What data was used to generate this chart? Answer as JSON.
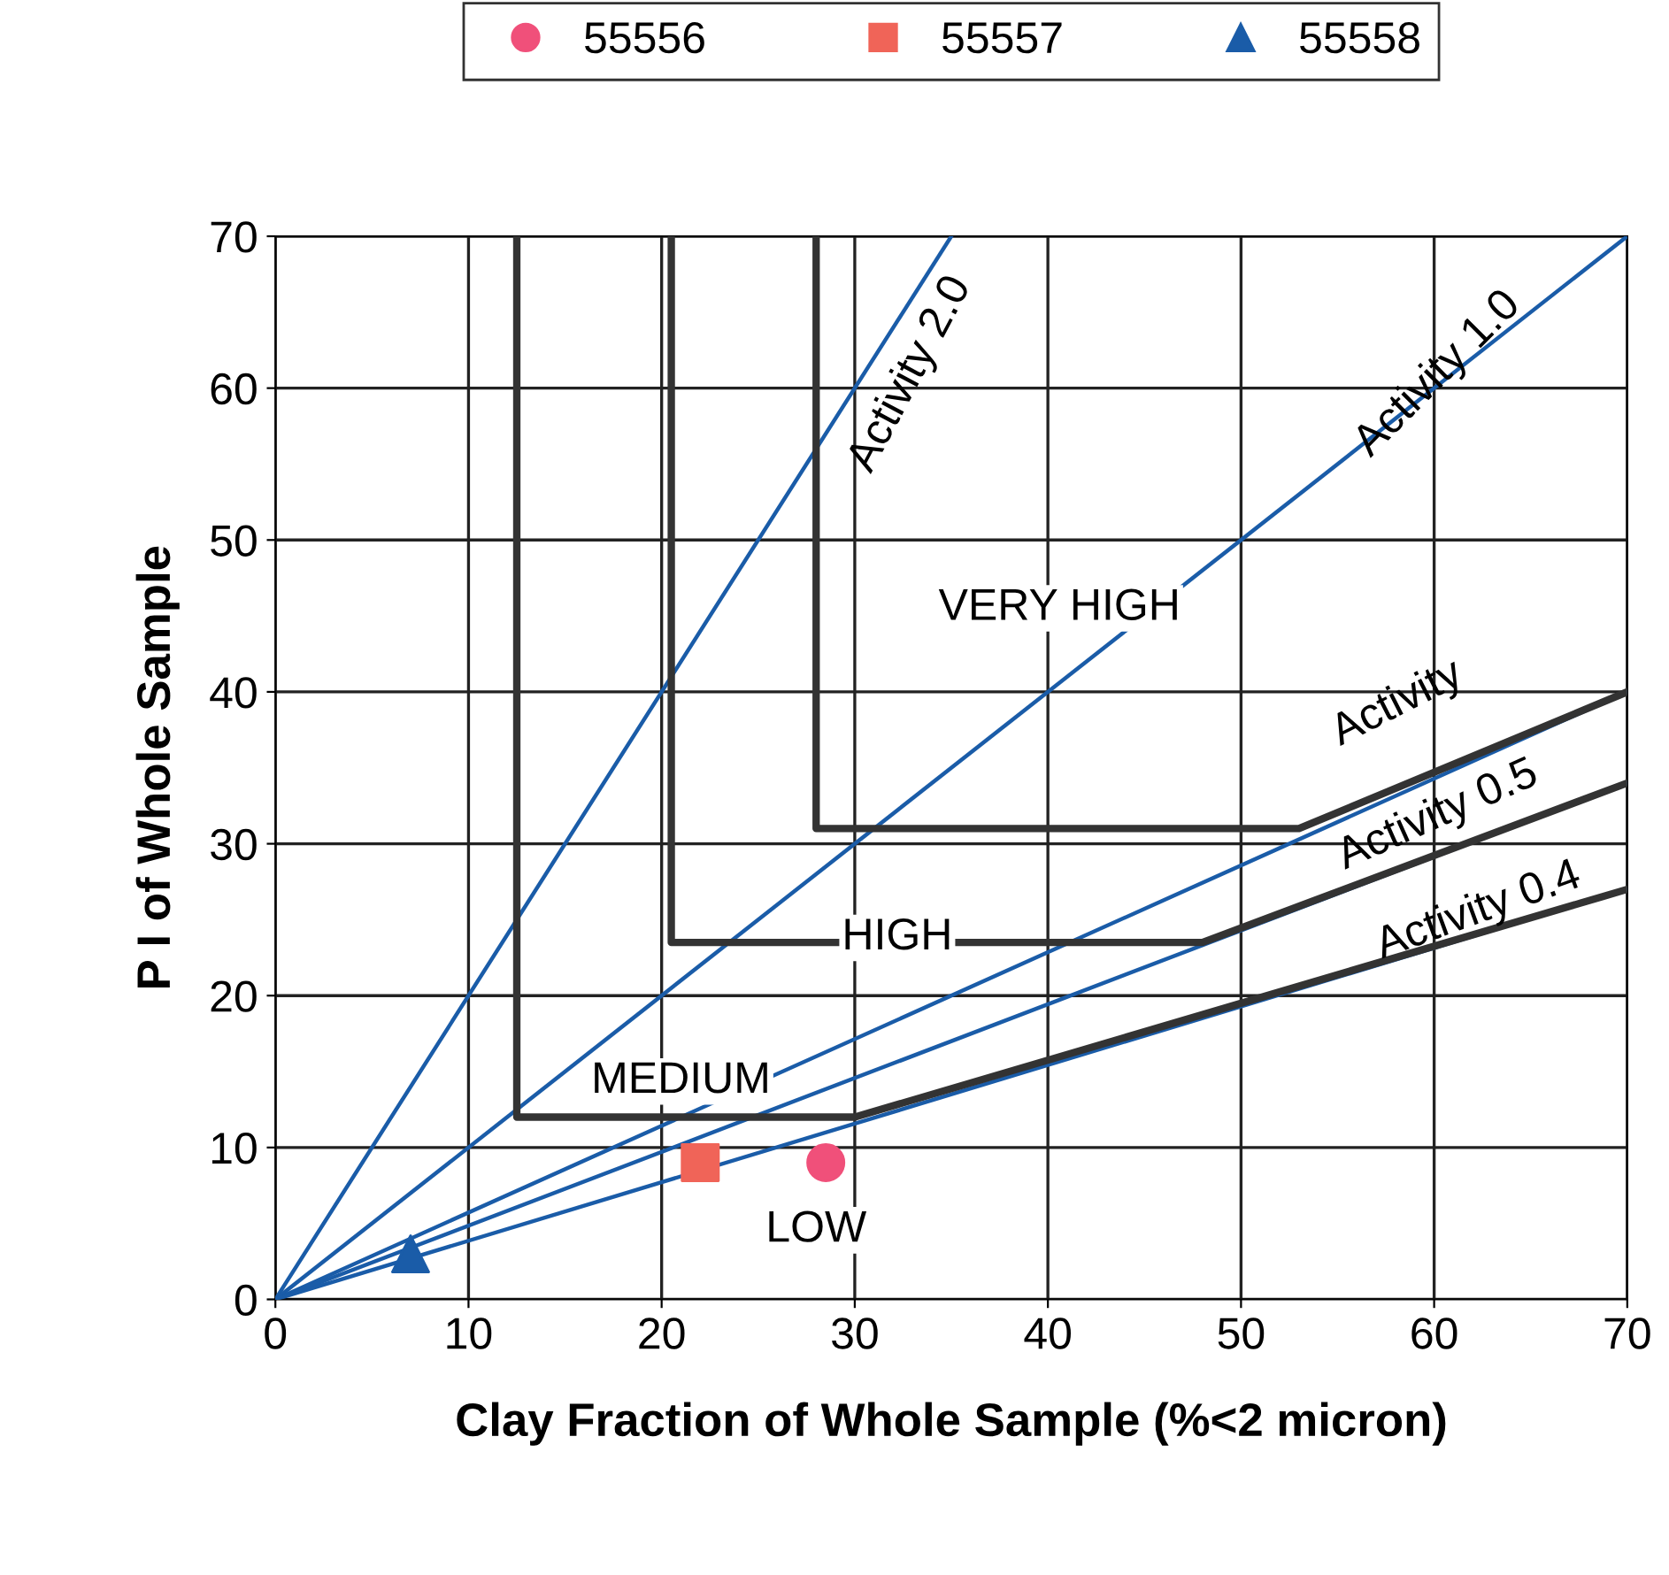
{
  "chart_data": {
    "type": "scatter",
    "xlabel": "Clay Fraction of Whole Sample (%<2 micron)",
    "ylabel": "P I of Whole Sample",
    "xlim": [
      0,
      70
    ],
    "ylim": [
      0,
      70
    ],
    "xticks": [
      0,
      10,
      20,
      30,
      40,
      50,
      60,
      70
    ],
    "yticks": [
      0,
      10,
      20,
      30,
      40,
      50,
      60,
      70
    ],
    "grid": true,
    "legend": "top",
    "series": [
      {
        "name": "55556",
        "color": "#f0507a",
        "marker": "circle",
        "x": [
          28.5
        ],
        "values": [
          9
        ]
      },
      {
        "name": "55557",
        "color": "#f06458",
        "marker": "square",
        "x": [
          22
        ],
        "values": [
          9
        ]
      },
      {
        "name": "55558",
        "color": "#1a5ca8",
        "marker": "triangle",
        "x": [
          7
        ],
        "values": [
          3
        ]
      },
      {
        "type": "line",
        "color": "#1a5ca8",
        "marker": "none",
        "x": [
          0,
          35
        ],
        "values": [
          0,
          70
        ]
      },
      {
        "type": "line",
        "color": "#1a5ca8",
        "marker": "none",
        "x": [
          0,
          70
        ],
        "values": [
          0,
          70
        ]
      },
      {
        "type": "line",
        "color": "#1a5ca8",
        "marker": "none",
        "x": [
          0,
          70
        ],
        "values": [
          0,
          40
        ]
      },
      {
        "type": "line",
        "color": "#1a5ca8",
        "marker": "none",
        "x": [
          0,
          70
        ],
        "values": [
          0,
          34
        ]
      },
      {
        "type": "line",
        "color": "#1a5ca8",
        "marker": "none",
        "x": [
          0,
          70
        ],
        "values": [
          0,
          27
        ]
      },
      {
        "type": "line",
        "color": "#333333",
        "marker": "none",
        "x": [
          12.5,
          12.5,
          30,
          70
        ],
        "values": [
          70,
          12,
          12,
          27
        ]
      },
      {
        "type": "line",
        "color": "#333333",
        "marker": "none",
        "x": [
          20.5,
          20.5,
          48,
          70
        ],
        "values": [
          70,
          23.5,
          23.5,
          34
        ]
      },
      {
        "type": "line",
        "color": "#333333",
        "marker": "none",
        "x": [
          28,
          28,
          53,
          70
        ],
        "values": [
          70,
          31,
          31,
          40
        ]
      }
    ],
    "annotations": [
      "Activity 2.0",
      "Activity 1.0",
      "Activity",
      "Activity 0.5",
      "Activity 0.4",
      "VERY HIGH",
      "HIGH",
      "MEDIUM",
      "LOW"
    ]
  }
}
